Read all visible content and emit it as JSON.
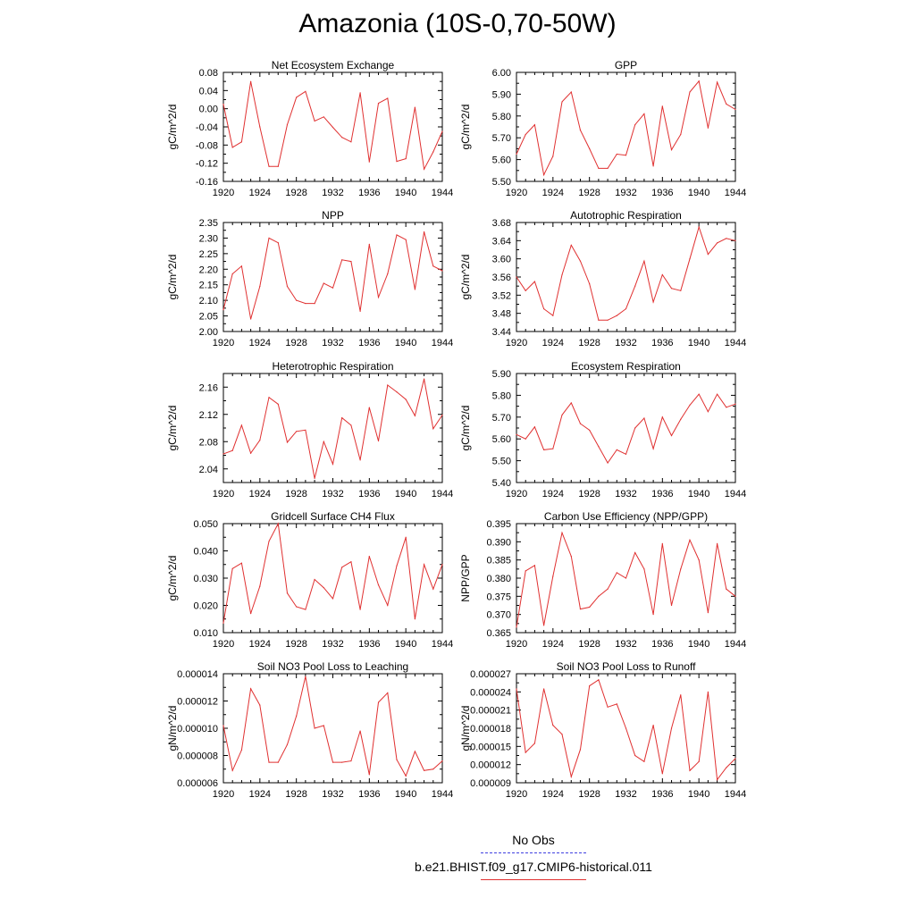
{
  "figure": {
    "title": "Amazonia (10S-0,70-50W)",
    "legend": {
      "obs_label": "No Obs",
      "obs_color": "#4040e0",
      "model_label": "b.e21.BHIST.f09_g17.CMIP6-historical.011",
      "model_color": "#e03030"
    }
  },
  "chart_data": [
    {
      "type": "line",
      "title": "Net Ecosystem Exchange",
      "ylabel": "gC/m^2/d",
      "xlim": [
        1920,
        1944
      ],
      "xticks": [
        1920,
        1924,
        1928,
        1932,
        1936,
        1940,
        1944
      ],
      "ylim": [
        -0.16,
        0.08
      ],
      "yticks": [
        -0.16,
        -0.12,
        -0.08,
        -0.04,
        0.0,
        0.04,
        0.08
      ],
      "ytick_labels": [
        "-0.16",
        "-0.12",
        "-0.08",
        "-0.04",
        "0.00",
        "0.04",
        "0.08"
      ],
      "x": [
        1920,
        1921,
        1922,
        1923,
        1924,
        1925,
        1926,
        1927,
        1928,
        1929,
        1930,
        1931,
        1932,
        1933,
        1934,
        1935,
        1936,
        1937,
        1938,
        1939,
        1940,
        1941,
        1942,
        1943,
        1944
      ],
      "series": [
        {
          "color": "#e03030",
          "values": [
            0.01,
            -0.085,
            -0.073,
            0.06,
            -0.04,
            -0.127,
            -0.127,
            -0.035,
            0.025,
            0.038,
            -0.027,
            -0.018,
            -0.041,
            -0.063,
            -0.073,
            0.035,
            -0.117,
            0.012,
            0.023,
            -0.116,
            -0.11,
            0.003,
            -0.133,
            -0.095,
            -0.05
          ]
        }
      ]
    },
    {
      "type": "line",
      "title": "GPP",
      "ylabel": "gC/m^2/d",
      "xlim": [
        1920,
        1944
      ],
      "xticks": [
        1920,
        1924,
        1928,
        1932,
        1936,
        1940,
        1944
      ],
      "ylim": [
        5.5,
        6.0
      ],
      "yticks": [
        5.5,
        5.6,
        5.7,
        5.8,
        5.9,
        6.0
      ],
      "ytick_labels": [
        "5.50",
        "5.60",
        "5.70",
        "5.80",
        "5.90",
        "6.00"
      ],
      "x": [
        1920,
        1921,
        1922,
        1923,
        1924,
        1925,
        1926,
        1927,
        1928,
        1929,
        1930,
        1931,
        1932,
        1933,
        1934,
        1935,
        1936,
        1937,
        1938,
        1939,
        1940,
        1941,
        1942,
        1943,
        1944
      ],
      "series": [
        {
          "color": "#e03030",
          "values": [
            5.625,
            5.715,
            5.76,
            5.53,
            5.615,
            5.865,
            5.91,
            5.735,
            5.65,
            5.56,
            5.56,
            5.625,
            5.62,
            5.76,
            5.81,
            5.57,
            5.845,
            5.645,
            5.715,
            5.91,
            5.96,
            5.745,
            5.955,
            5.855,
            5.83
          ]
        }
      ]
    },
    {
      "type": "line",
      "title": "NPP",
      "ylabel": "gC/m^2/d",
      "xlim": [
        1920,
        1944
      ],
      "xticks": [
        1920,
        1924,
        1928,
        1932,
        1936,
        1940,
        1944
      ],
      "ylim": [
        2.0,
        2.35
      ],
      "yticks": [
        2.0,
        2.05,
        2.1,
        2.15,
        2.2,
        2.25,
        2.3,
        2.35
      ],
      "ytick_labels": [
        "2.00",
        "2.05",
        "2.10",
        "2.15",
        "2.20",
        "2.25",
        "2.30",
        "2.35"
      ],
      "x": [
        1920,
        1921,
        1922,
        1923,
        1924,
        1925,
        1926,
        1927,
        1928,
        1929,
        1930,
        1931,
        1932,
        1933,
        1934,
        1935,
        1936,
        1937,
        1938,
        1939,
        1940,
        1941,
        1942,
        1943,
        1944
      ],
      "series": [
        {
          "color": "#e03030",
          "values": [
            2.07,
            2.185,
            2.21,
            2.04,
            2.145,
            2.3,
            2.285,
            2.145,
            2.1,
            2.09,
            2.09,
            2.155,
            2.14,
            2.23,
            2.225,
            2.065,
            2.28,
            2.11,
            2.185,
            2.31,
            2.295,
            2.135,
            2.32,
            2.21,
            2.195
          ]
        }
      ]
    },
    {
      "type": "line",
      "title": "Autotrophic Respiration",
      "ylabel": "gC/m^2/d",
      "xlim": [
        1920,
        1944
      ],
      "xticks": [
        1920,
        1924,
        1928,
        1932,
        1936,
        1940,
        1944
      ],
      "ylim": [
        3.44,
        3.68
      ],
      "yticks": [
        3.44,
        3.48,
        3.52,
        3.56,
        3.6,
        3.64,
        3.68
      ],
      "ytick_labels": [
        "3.44",
        "3.48",
        "3.52",
        "3.56",
        "3.60",
        "3.64",
        "3.68"
      ],
      "x": [
        1920,
        1921,
        1922,
        1923,
        1924,
        1925,
        1926,
        1927,
        1928,
        1929,
        1930,
        1931,
        1932,
        1933,
        1934,
        1935,
        1936,
        1937,
        1938,
        1939,
        1940,
        1941,
        1942,
        1943,
        1944
      ],
      "series": [
        {
          "color": "#e03030",
          "values": [
            3.56,
            3.53,
            3.55,
            3.49,
            3.475,
            3.565,
            3.63,
            3.595,
            3.545,
            3.465,
            3.465,
            3.475,
            3.49,
            3.54,
            3.595,
            3.505,
            3.565,
            3.535,
            3.53,
            3.6,
            3.67,
            3.61,
            3.635,
            3.645,
            3.64
          ]
        }
      ]
    },
    {
      "type": "line",
      "title": "Heterotrophic Respiration",
      "ylabel": "gC/m^2/d",
      "xlim": [
        1920,
        1944
      ],
      "xticks": [
        1920,
        1924,
        1928,
        1932,
        1936,
        1940,
        1944
      ],
      "ylim": [
        2.02,
        2.18
      ],
      "yticks": [
        2.04,
        2.08,
        2.12,
        2.16
      ],
      "ytick_labels": [
        "2.04",
        "2.08",
        "2.12",
        "2.16"
      ],
      "x": [
        1920,
        1921,
        1922,
        1923,
        1924,
        1925,
        1926,
        1927,
        1928,
        1929,
        1930,
        1931,
        1932,
        1933,
        1934,
        1935,
        1936,
        1937,
        1938,
        1939,
        1940,
        1941,
        1942,
        1943,
        1944
      ],
      "series": [
        {
          "color": "#e03030",
          "values": [
            2.062,
            2.067,
            2.104,
            2.063,
            2.082,
            2.145,
            2.135,
            2.079,
            2.095,
            2.097,
            2.026,
            2.08,
            2.047,
            2.115,
            2.104,
            2.053,
            2.13,
            2.081,
            2.163,
            2.153,
            2.142,
            2.118,
            2.172,
            2.099,
            2.119
          ]
        }
      ]
    },
    {
      "type": "line",
      "title": "Ecosystem Respiration",
      "ylabel": "gC/m^2/d",
      "xlim": [
        1920,
        1944
      ],
      "xticks": [
        1920,
        1924,
        1928,
        1932,
        1936,
        1940,
        1944
      ],
      "ylim": [
        5.4,
        5.9
      ],
      "yticks": [
        5.4,
        5.5,
        5.6,
        5.7,
        5.8,
        5.9
      ],
      "ytick_labels": [
        "5.40",
        "5.50",
        "5.60",
        "5.70",
        "5.80",
        "5.90"
      ],
      "x": [
        1920,
        1921,
        1922,
        1923,
        1924,
        1925,
        1926,
        1927,
        1928,
        1929,
        1930,
        1931,
        1932,
        1933,
        1934,
        1935,
        1936,
        1937,
        1938,
        1939,
        1940,
        1941,
        1942,
        1943,
        1944
      ],
      "series": [
        {
          "color": "#e03030",
          "values": [
            5.62,
            5.6,
            5.655,
            5.55,
            5.555,
            5.71,
            5.765,
            5.67,
            5.64,
            5.565,
            5.49,
            5.55,
            5.53,
            5.65,
            5.695,
            5.555,
            5.7,
            5.615,
            5.69,
            5.755,
            5.805,
            5.725,
            5.805,
            5.745,
            5.76
          ]
        }
      ]
    },
    {
      "type": "line",
      "title": "Gridcell Surface CH4 Flux",
      "ylabel": "gC/m^2/d",
      "xlim": [
        1920,
        1944
      ],
      "xticks": [
        1920,
        1924,
        1928,
        1932,
        1936,
        1940,
        1944
      ],
      "ylim": [
        0.01,
        0.05
      ],
      "yticks": [
        0.01,
        0.02,
        0.03,
        0.04,
        0.05
      ],
      "ytick_labels": [
        "0.010",
        "0.020",
        "0.030",
        "0.040",
        "0.050"
      ],
      "x": [
        1920,
        1921,
        1922,
        1923,
        1924,
        1925,
        1926,
        1927,
        1928,
        1929,
        1930,
        1931,
        1932,
        1933,
        1934,
        1935,
        1936,
        1937,
        1938,
        1939,
        1940,
        1941,
        1942,
        1943,
        1944
      ],
      "series": [
        {
          "color": "#e03030",
          "values": [
            0.0135,
            0.0335,
            0.0355,
            0.017,
            0.027,
            0.0435,
            0.05,
            0.0245,
            0.0195,
            0.0185,
            0.0295,
            0.0265,
            0.0225,
            0.034,
            0.036,
            0.0185,
            0.038,
            0.0275,
            0.02,
            0.0345,
            0.045,
            0.015,
            0.035,
            0.026,
            0.035
          ]
        }
      ]
    },
    {
      "type": "line",
      "title": "Carbon Use Efficiency (NPP/GPP)",
      "ylabel": "NPP/GPP",
      "xlim": [
        1920,
        1944
      ],
      "xticks": [
        1920,
        1924,
        1928,
        1932,
        1936,
        1940,
        1944
      ],
      "ylim": [
        0.365,
        0.395
      ],
      "yticks": [
        0.365,
        0.37,
        0.375,
        0.38,
        0.385,
        0.39,
        0.395
      ],
      "ytick_labels": [
        "0.365",
        "0.370",
        "0.375",
        "0.380",
        "0.385",
        "0.390",
        "0.395"
      ],
      "x": [
        1920,
        1921,
        1922,
        1923,
        1924,
        1925,
        1926,
        1927,
        1928,
        1929,
        1930,
        1931,
        1932,
        1933,
        1934,
        1935,
        1936,
        1937,
        1938,
        1939,
        1940,
        1941,
        1942,
        1943,
        1944
      ],
      "series": [
        {
          "color": "#e03030",
          "values": [
            0.3665,
            0.382,
            0.3835,
            0.367,
            0.3805,
            0.3925,
            0.386,
            0.3715,
            0.372,
            0.375,
            0.377,
            0.3815,
            0.38,
            0.387,
            0.3825,
            0.37,
            0.3895,
            0.3725,
            0.3825,
            0.3905,
            0.385,
            0.3705,
            0.3895,
            0.377,
            0.375
          ]
        }
      ]
    },
    {
      "type": "line",
      "title": "Soil NO3 Pool Loss to Leaching",
      "ylabel": "gN/m^2/d",
      "xlim": [
        1920,
        1944
      ],
      "xticks": [
        1920,
        1924,
        1928,
        1932,
        1936,
        1940,
        1944
      ],
      "ylim": [
        6e-06,
        1.4e-05
      ],
      "yticks": [
        6e-06,
        8e-06,
        1e-05,
        1.2e-05,
        1.4e-05
      ],
      "ytick_labels": [
        "0.000006",
        "0.000008",
        "0.000010",
        "0.000012",
        "0.000014"
      ],
      "x": [
        1920,
        1921,
        1922,
        1923,
        1924,
        1925,
        1926,
        1927,
        1928,
        1929,
        1930,
        1931,
        1932,
        1933,
        1934,
        1935,
        1936,
        1937,
        1938,
        1939,
        1940,
        1941,
        1942,
        1943,
        1944
      ],
      "series": [
        {
          "color": "#e03030",
          "values": [
            1.02e-05,
            6.9e-06,
            8.4e-06,
            1.29e-05,
            1.17e-05,
            7.5e-06,
            7.5e-06,
            8.8e-06,
            1.09e-05,
            1.38e-05,
            1e-05,
            1.02e-05,
            7.5e-06,
            7.5e-06,
            7.6e-06,
            9.8e-06,
            6.6e-06,
            1.19e-05,
            1.26e-05,
            7.7e-06,
            6.5e-06,
            8.3e-06,
            6.9e-06,
            7e-06,
            7.6e-06
          ]
        }
      ]
    },
    {
      "type": "line",
      "title": "Soil NO3 Pool Loss to Runoff",
      "ylabel": "gN/m^2/d",
      "xlim": [
        1920,
        1944
      ],
      "xticks": [
        1920,
        1924,
        1928,
        1932,
        1936,
        1940,
        1944
      ],
      "ylim": [
        9e-06,
        2.7e-05
      ],
      "yticks": [
        9e-06,
        1.2e-05,
        1.5e-05,
        1.8e-05,
        2.1e-05,
        2.4e-05,
        2.7e-05
      ],
      "ytick_labels": [
        "0.000009",
        "0.000012",
        "0.000015",
        "0.000018",
        "0.000021",
        "0.000024",
        "0.000027"
      ],
      "x": [
        1920,
        1921,
        1922,
        1923,
        1924,
        1925,
        1926,
        1927,
        1928,
        1929,
        1930,
        1931,
        1932,
        1933,
        1934,
        1935,
        1936,
        1937,
        1938,
        1939,
        1940,
        1941,
        1942,
        1943,
        1944
      ],
      "series": [
        {
          "color": "#e03030",
          "values": [
            2.45e-05,
            1.4e-05,
            1.55e-05,
            2.45e-05,
            1.85e-05,
            1.7e-05,
            1e-05,
            1.45e-05,
            2.5e-05,
            2.6e-05,
            2.15e-05,
            2.2e-05,
            1.8e-05,
            1.35e-05,
            1.25e-05,
            1.85e-05,
            1.05e-05,
            1.8e-05,
            2.35e-05,
            1.1e-05,
            1.25e-05,
            2.4e-05,
            9.5e-06,
            1.15e-05,
            1.3e-05
          ]
        }
      ]
    }
  ]
}
